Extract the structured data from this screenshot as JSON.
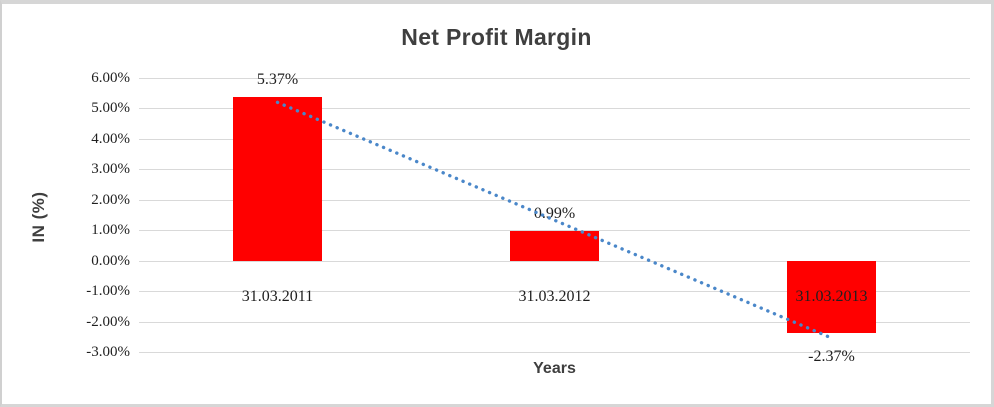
{
  "chart_data": {
    "type": "bar",
    "title": "Net Profit Margin",
    "xlabel": "Years",
    "ylabel": "IN (%)",
    "categories": [
      "31.03.2011",
      "31.03.2012",
      "31.03.2013"
    ],
    "values": [
      5.37,
      0.99,
      -2.37
    ],
    "data_labels": [
      "5.37%",
      "0.99%",
      "-2.37%"
    ],
    "ylim": [
      -3,
      6
    ],
    "ytick_step": 1,
    "ytick_labels": [
      "6.00%",
      "5.00%",
      "4.00%",
      "3.00%",
      "2.00%",
      "1.00%",
      "0.00%",
      "-1.00%",
      "-2.00%",
      "-3.00%"
    ],
    "grid": true,
    "legend": "none",
    "bar_color": "#ff0000",
    "gridline_color": "#d9d9d9",
    "label_color": "#1f1f1f",
    "title_color": "#3f3f3f",
    "trendline": {
      "type": "linear",
      "style": "dotted",
      "color": "#4a87c9"
    }
  }
}
